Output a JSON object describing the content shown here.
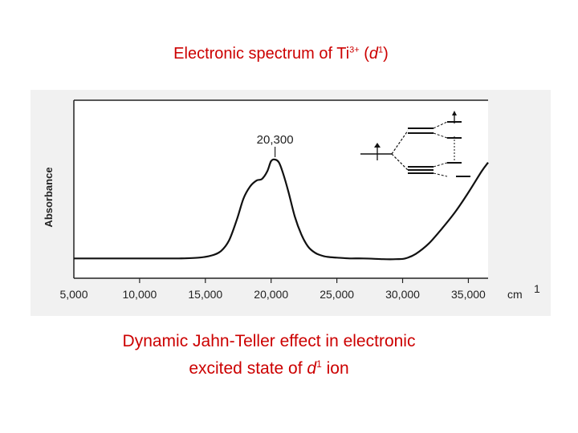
{
  "title": {
    "prefix": "Electronic spectrum of Ti",
    "superscript": "3+",
    "middle": " (",
    "italic": "d",
    "sup2": "1",
    "suffix": ")"
  },
  "caption": {
    "line1": "Dynamic Jahn-Teller effect in electronic",
    "line2_prefix": "excited state of ",
    "line2_italic": "d",
    "line2_sup": "1",
    "line2_suffix": " ion"
  },
  "colors": {
    "title": "#cc0000",
    "panel": "#f1f1f1",
    "trace": "#111111"
  },
  "chart_data": {
    "type": "line",
    "ylabel": "Absorbance",
    "xlabel_unit": "cm",
    "xlabel_unit_sup": "1",
    "xlim": [
      5000,
      36500
    ],
    "ylim": [
      0,
      1
    ],
    "xticks": [
      5000,
      10000,
      15000,
      20000,
      25000,
      30000,
      35000
    ],
    "xtick_labels": [
      "5,000",
      "10,000",
      "15,000",
      "20,000",
      "25,000",
      "30,000",
      "35,000"
    ],
    "peak": {
      "x": 20300,
      "label": "20,300"
    },
    "series": [
      {
        "x": [
          5000,
          8000,
          11000,
          13000,
          14500,
          15500,
          16200,
          16800,
          17400,
          17900,
          18400,
          18900,
          19300,
          19700,
          20000,
          20300,
          20600,
          20900,
          21300,
          21800,
          22300,
          22800,
          23300,
          23800,
          24300,
          25000,
          26000,
          27000,
          28500,
          29500,
          30200,
          31000,
          32000,
          33000,
          34000,
          35000,
          36000,
          36500
        ],
        "y": [
          0.02,
          0.02,
          0.02,
          0.02,
          0.025,
          0.04,
          0.07,
          0.14,
          0.28,
          0.42,
          0.5,
          0.54,
          0.55,
          0.6,
          0.67,
          0.68,
          0.66,
          0.59,
          0.47,
          0.3,
          0.18,
          0.1,
          0.06,
          0.04,
          0.03,
          0.025,
          0.02,
          0.02,
          0.015,
          0.015,
          0.02,
          0.05,
          0.12,
          0.22,
          0.33,
          0.46,
          0.6,
          0.66
        ]
      }
    ]
  }
}
